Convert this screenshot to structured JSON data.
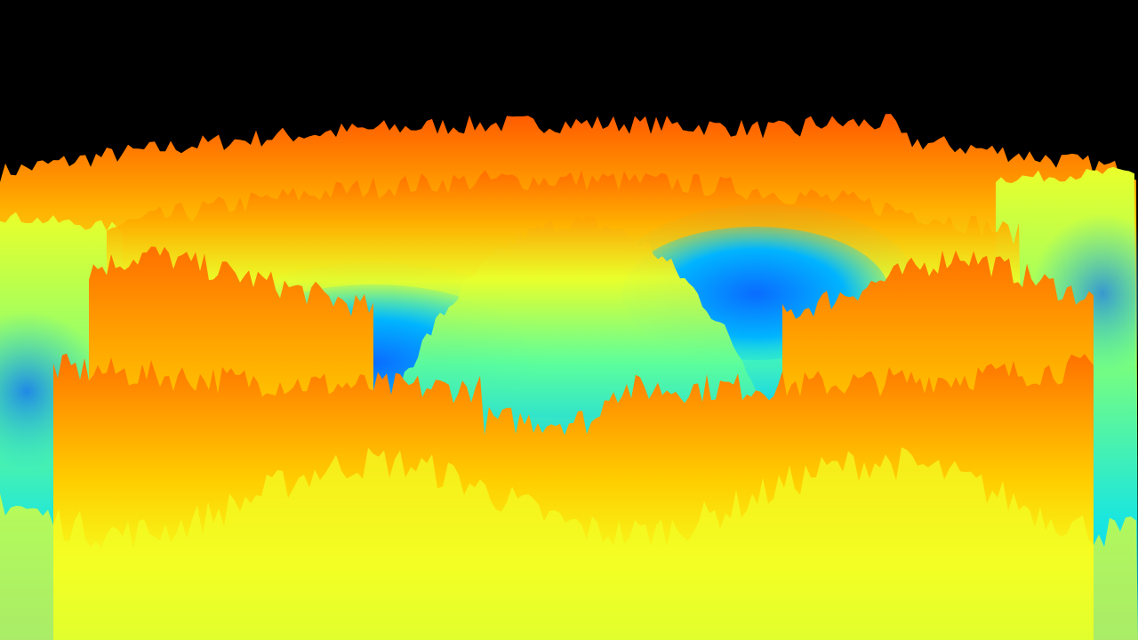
{
  "scene": {
    "background_color": "#000000",
    "colormap": [
      "#0a5cff",
      "#00bfff",
      "#19e6e0",
      "#7dff7a",
      "#eaff2a",
      "#ffe100",
      "#ffb000",
      "#ff7a00",
      "#ff3c00"
    ],
    "mid_color": "#4dffb0"
  }
}
